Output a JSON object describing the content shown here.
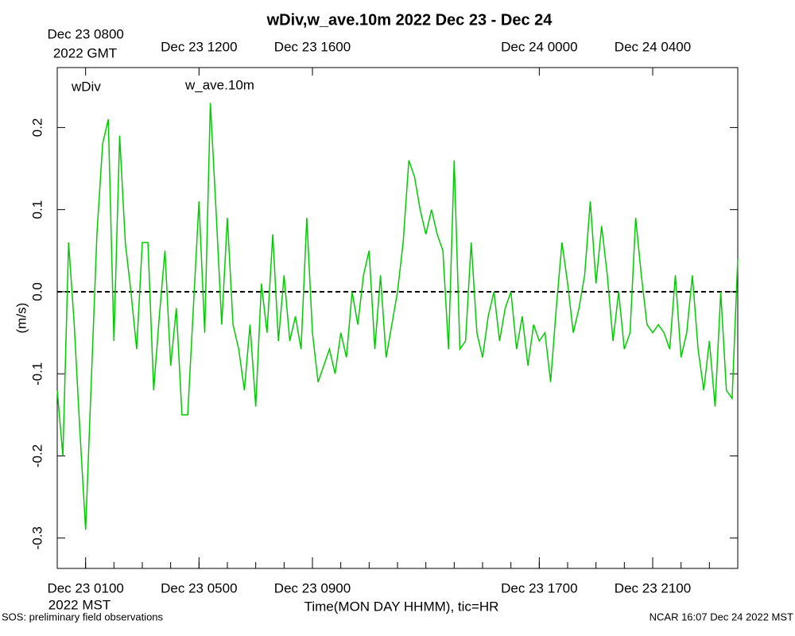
{
  "chart_data": {
    "type": "line",
    "title": "wDiv,w_ave.10m 2022 Dec 23 - Dec 24",
    "x_label": "Time(MON DAY HHMM), tic=HR",
    "y_label": "(m/s)",
    "x_unit_label": "2022 MST",
    "x2_unit_label": "2022 GMT",
    "footer_left": "SOS: preliminary field observations",
    "footer_right": "NCAR 16:07 Dec 24 2022 MST",
    "xlim": [
      0,
      24
    ],
    "ylim": [
      -0.337,
      0.273
    ],
    "xticks": [
      {
        "value": 1,
        "label": "Dec 23 0100"
      },
      {
        "value": 5,
        "label": "Dec 23 0500"
      },
      {
        "value": 9,
        "label": "Dec 23 0900"
      },
      {
        "value": 17,
        "label": "Dec 23 1700"
      },
      {
        "value": 21,
        "label": "Dec 23 2100"
      }
    ],
    "x2ticks": [
      {
        "value": 1,
        "label": "Dec 23 0800"
      },
      {
        "value": 5,
        "label": "Dec 23 1200"
      },
      {
        "value": 9,
        "label": "Dec 23 1600"
      },
      {
        "value": 17,
        "label": "Dec 24 0000"
      },
      {
        "value": 21,
        "label": "Dec 24 0400"
      }
    ],
    "x_minor_ticks": [
      0,
      1,
      2,
      3,
      4,
      5,
      6,
      7,
      8,
      9,
      10,
      11,
      12,
      13,
      14,
      15,
      16,
      17,
      18,
      19,
      20,
      21,
      22,
      23,
      24
    ],
    "yticks": [
      -0.3,
      -0.2,
      -0.1,
      {
        "value": 0,
        "label": "0.0"
      },
      0.1,
      0.2
    ],
    "reference_line": 0,
    "x": [
      0,
      0.2,
      0.4,
      0.6,
      0.8,
      1,
      1.2,
      1.4,
      1.6,
      1.8,
      2,
      2.2,
      2.4,
      2.6,
      2.8,
      3,
      3.2,
      3.4,
      3.6,
      3.8,
      4,
      4.2,
      4.4,
      4.6,
      4.8,
      5,
      5.2,
      5.4,
      5.6,
      5.8,
      6,
      6.2,
      6.4,
      6.6,
      6.8,
      7,
      7.2,
      7.4,
      7.6,
      7.8,
      8,
      8.2,
      8.4,
      8.6,
      8.8,
      9,
      9.2,
      9.4,
      9.6,
      9.8,
      10,
      10.2,
      10.4,
      10.6,
      10.8,
      11,
      11.2,
      11.4,
      11.6,
      11.8,
      12,
      12.2,
      12.4,
      12.6,
      12.8,
      13,
      13.2,
      13.4,
      13.6,
      13.8,
      14,
      14.2,
      14.4,
      14.6,
      14.8,
      15,
      15.2,
      15.4,
      15.6,
      15.8,
      16,
      16.2,
      16.4,
      16.6,
      16.8,
      17,
      17.2,
      17.4,
      17.6,
      17.8,
      18,
      18.2,
      18.4,
      18.6,
      18.8,
      19,
      19.2,
      19.4,
      19.6,
      19.8,
      20,
      20.2,
      20.4,
      20.6,
      20.8,
      21,
      21.2,
      21.4,
      21.6,
      21.8,
      22,
      22.2,
      22.4,
      22.6,
      22.8,
      23,
      23.2,
      23.4,
      23.6,
      23.8,
      24
    ],
    "series": [
      {
        "name": "wDiv",
        "color": "#ff0000",
        "values": null
      },
      {
        "name": "w_ave.10m",
        "color": "#00cc00",
        "values": [
          -0.12,
          -0.2,
          0.06,
          -0.04,
          -0.17,
          -0.29,
          -0.11,
          0.07,
          0.18,
          0.21,
          -0.06,
          0.19,
          0.06,
          0.0,
          -0.07,
          0.06,
          0.06,
          -0.12,
          -0.03,
          0.05,
          -0.09,
          -0.02,
          -0.15,
          -0.15,
          -0.02,
          0.11,
          -0.05,
          0.23,
          0.1,
          -0.04,
          0.09,
          -0.04,
          -0.07,
          -0.12,
          -0.04,
          -0.14,
          0.01,
          -0.05,
          0.07,
          -0.06,
          0.02,
          -0.06,
          -0.03,
          -0.07,
          0.09,
          -0.05,
          -0.11,
          -0.09,
          -0.07,
          -0.1,
          -0.05,
          -0.08,
          0.0,
          -0.04,
          0.02,
          0.05,
          -0.07,
          0.02,
          -0.08,
          -0.04,
          0.0,
          0.06,
          0.16,
          0.14,
          0.1,
          0.07,
          0.1,
          0.07,
          0.05,
          -0.07,
          0.16,
          -0.07,
          -0.06,
          0.06,
          -0.05,
          -0.08,
          -0.03,
          0.0,
          -0.06,
          -0.02,
          0.0,
          -0.07,
          -0.03,
          -0.09,
          -0.04,
          -0.06,
          -0.05,
          -0.11,
          -0.02,
          0.06,
          0.01,
          -0.05,
          -0.02,
          0.02,
          0.11,
          0.01,
          0.08,
          0.02,
          -0.06,
          0.0,
          -0.07,
          -0.05,
          0.09,
          0.02,
          -0.04,
          -0.05,
          -0.04,
          -0.05,
          -0.07,
          0.02,
          -0.08,
          -0.05,
          0.02,
          -0.07,
          -0.12,
          -0.06,
          -0.14,
          0.0,
          -0.12,
          -0.13,
          0.04
        ]
      }
    ]
  }
}
